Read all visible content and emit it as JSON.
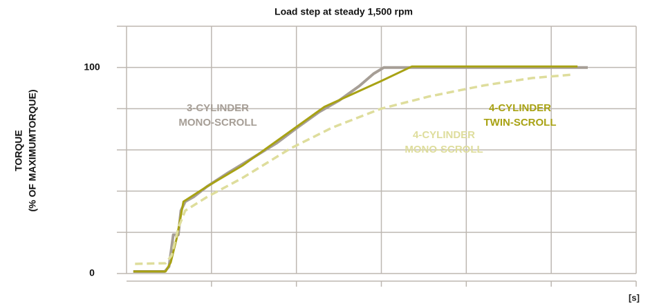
{
  "chart_data": {
    "type": "line",
    "title": "Load step at steady 1,500 rpm",
    "y_label": [
      "TORQUE",
      "(% OF MAXIMUMTORQUE)"
    ],
    "x_label": "[s]",
    "xlim": [
      0,
      6
    ],
    "xticks_unlabeled": [
      1,
      2,
      3,
      4,
      5,
      6
    ],
    "ylim": [
      0,
      120
    ],
    "yticks": [
      0,
      100
    ],
    "yticks_unlabeled": [
      20,
      40,
      60,
      80,
      120
    ],
    "grid": true,
    "series": [
      {
        "name": [
          "3-CYLINDER",
          "MONO-SCROLL"
        ],
        "color": "#a69e96",
        "dashed": false,
        "x": [
          0.08,
          0.45,
          0.5,
          0.55,
          0.61,
          0.64,
          0.69,
          0.79,
          0.95,
          1.2,
          1.44,
          1.77,
          2.01,
          2.26,
          2.5,
          2.74,
          2.91,
          3.03,
          5.43
        ],
        "values": [
          1,
          1,
          3.4,
          18.8,
          18.8,
          30.5,
          34.9,
          37.2,
          42.3,
          49,
          55,
          63.4,
          70.8,
          78.2,
          83.9,
          91,
          97,
          100,
          100
        ]
      },
      {
        "name": [
          "4-CYLINDER",
          "MONO-SCROLL"
        ],
        "color": "#dedd9c",
        "dashed": true,
        "x": [
          0.1,
          0.46,
          0.53,
          0.61,
          0.69,
          0.95,
          1.36,
          1.93,
          2.42,
          2.99,
          3.56,
          4.21,
          4.78,
          5.27
        ],
        "values": [
          4.7,
          5,
          8.7,
          22.1,
          30.5,
          37.2,
          46.3,
          60.7,
          70.8,
          79.9,
          85.9,
          91.3,
          94.9,
          96.6
        ]
      },
      {
        "name": [
          "4-CYLINDER",
          "TWIN-SCROLL"
        ],
        "color": "#a8a214",
        "dashed": false,
        "x": [
          0.08,
          0.46,
          0.52,
          0.59,
          0.67,
          0.95,
          1.36,
          1.93,
          2.33,
          2.99,
          3.36,
          5.31
        ],
        "values": [
          1,
          1,
          5.4,
          17.1,
          34.9,
          42.3,
          52.3,
          69.1,
          80.9,
          93.3,
          100.5,
          100.5
        ]
      }
    ]
  }
}
